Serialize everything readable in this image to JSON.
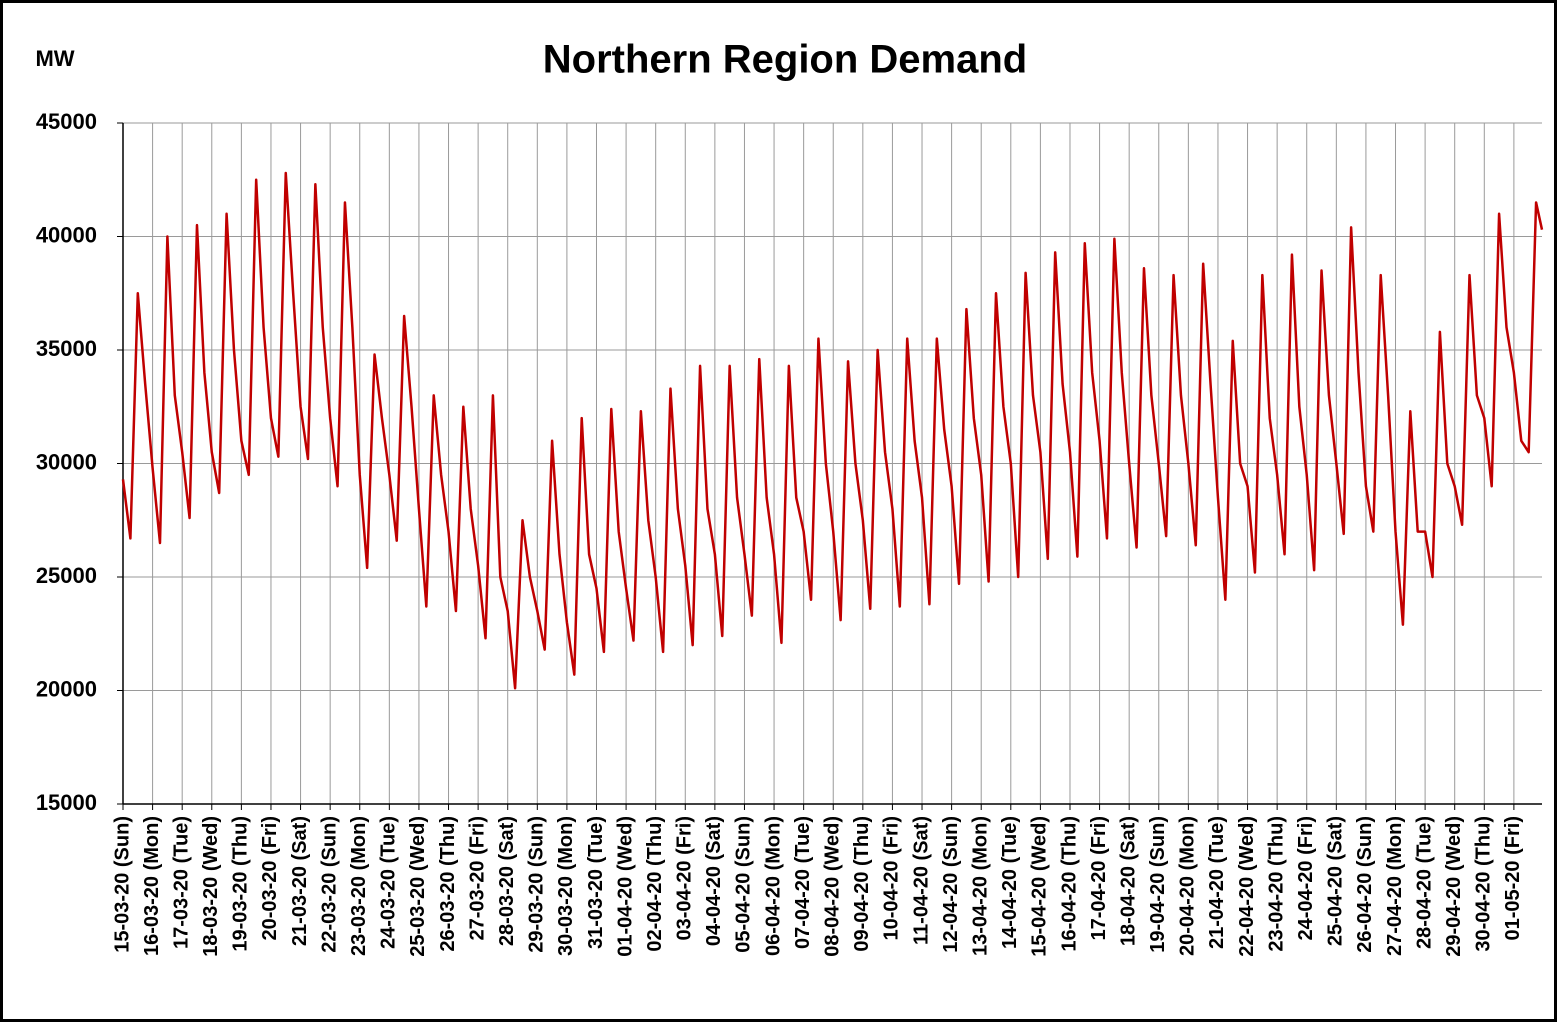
{
  "chart_data": {
    "type": "line",
    "title": "Northern Region Demand",
    "y_label": "MW",
    "color": "#c00000",
    "grid": true,
    "xlim": [
      0,
      47.95
    ],
    "ylim": [
      15000,
      45000
    ],
    "yticks": [
      15000,
      20000,
      25000,
      30000,
      35000,
      40000,
      45000
    ],
    "xticks": [
      {
        "value": 0,
        "label": "15-03-20 (Sun)"
      },
      {
        "value": 1,
        "label": "16-03-20 (Mon)"
      },
      {
        "value": 2,
        "label": "17-03-20 (Tue)"
      },
      {
        "value": 3,
        "label": "18-03-20 (Wed)"
      },
      {
        "value": 4,
        "label": "19-03-20 (Thu)"
      },
      {
        "value": 5,
        "label": "20-03-20 (Fri)"
      },
      {
        "value": 6,
        "label": "21-03-20 (Sat)"
      },
      {
        "value": 7,
        "label": "22-03-20 (Sun)"
      },
      {
        "value": 8,
        "label": "23-03-20 (Mon)"
      },
      {
        "value": 9,
        "label": "24-03-20 (Tue)"
      },
      {
        "value": 10,
        "label": "25-03-20 (Wed)"
      },
      {
        "value": 11,
        "label": "26-03-20 (Thu)"
      },
      {
        "value": 12,
        "label": "27-03-20 (Fri)"
      },
      {
        "value": 13,
        "label": "28-03-20 (Sat)"
      },
      {
        "value": 14,
        "label": "29-03-20 (Sun)"
      },
      {
        "value": 15,
        "label": "30-03-20 (Mon)"
      },
      {
        "value": 16,
        "label": "31-03-20 (Tue)"
      },
      {
        "value": 17,
        "label": "01-04-20 (Wed)"
      },
      {
        "value": 18,
        "label": "02-04-20 (Thu)"
      },
      {
        "value": 19,
        "label": "03-04-20 (Fri)"
      },
      {
        "value": 20,
        "label": "04-04-20 (Sat)"
      },
      {
        "value": 21,
        "label": "05-04-20 (Sun)"
      },
      {
        "value": 22,
        "label": "06-04-20 (Mon)"
      },
      {
        "value": 23,
        "label": "07-04-20 (Tue)"
      },
      {
        "value": 24,
        "label": "08-04-20 (Wed)"
      },
      {
        "value": 25,
        "label": "09-04-20 (Thu)"
      },
      {
        "value": 26,
        "label": "10-04-20 (Fri)"
      },
      {
        "value": 27,
        "label": "11-04-20 (Sat)"
      },
      {
        "value": 28,
        "label": "12-04-20 (Sun)"
      },
      {
        "value": 29,
        "label": "13-04-20 (Mon)"
      },
      {
        "value": 30,
        "label": "14-04-20 (Tue)"
      },
      {
        "value": 31,
        "label": "15-04-20 (Wed)"
      },
      {
        "value": 32,
        "label": "16-04-20 (Thu)"
      },
      {
        "value": 33,
        "label": "17-04-20 (Fri)"
      },
      {
        "value": 34,
        "label": "18-04-20 (Sat)"
      },
      {
        "value": 35,
        "label": "19-04-20 (Sun)"
      },
      {
        "value": 36,
        "label": "20-04-20 (Mon)"
      },
      {
        "value": 37,
        "label": "21-04-20 (Tue)"
      },
      {
        "value": 38,
        "label": "22-04-20 (Wed)"
      },
      {
        "value": 39,
        "label": "23-04-20 (Thu)"
      },
      {
        "value": 40,
        "label": "24-04-20 (Fri)"
      },
      {
        "value": 41,
        "label": "25-04-20 (Sat)"
      },
      {
        "value": 42,
        "label": "26-04-20 (Sun)"
      },
      {
        "value": 43,
        "label": "27-04-20 (Mon)"
      },
      {
        "value": 44,
        "label": "28-04-20 (Tue)"
      },
      {
        "value": 45,
        "label": "29-04-20 (Wed)"
      },
      {
        "value": 46,
        "label": "30-04-20 (Thu)"
      },
      {
        "value": 47,
        "label": "01-05-20 (Fri)"
      }
    ],
    "x": [
      0,
      0.25,
      0.5,
      0.75,
      1,
      1.25,
      1.5,
      1.75,
      2,
      2.25,
      2.5,
      2.75,
      3,
      3.25,
      3.5,
      3.75,
      4,
      4.25,
      4.5,
      4.75,
      5,
      5.25,
      5.5,
      5.75,
      6,
      6.25,
      6.5,
      6.75,
      7,
      7.25,
      7.5,
      7.75,
      8,
      8.25,
      8.5,
      8.75,
      9,
      9.25,
      9.5,
      9.75,
      10,
      10.25,
      10.5,
      10.75,
      11,
      11.25,
      11.5,
      11.75,
      12,
      12.25,
      12.5,
      12.75,
      13,
      13.25,
      13.5,
      13.75,
      14,
      14.25,
      14.5,
      14.75,
      15,
      15.25,
      15.5,
      15.75,
      16,
      16.25,
      16.5,
      16.75,
      17,
      17.25,
      17.5,
      17.75,
      18,
      18.25,
      18.5,
      18.75,
      19,
      19.25,
      19.5,
      19.75,
      20,
      20.25,
      20.5,
      20.75,
      21,
      21.25,
      21.5,
      21.75,
      22,
      22.25,
      22.5,
      22.75,
      23,
      23.25,
      23.5,
      23.75,
      24,
      24.25,
      24.5,
      24.75,
      25,
      25.25,
      25.5,
      25.75,
      26,
      26.25,
      26.5,
      26.75,
      27,
      27.25,
      27.5,
      27.75,
      28,
      28.25,
      28.5,
      28.75,
      29,
      29.25,
      29.5,
      29.75,
      30,
      30.25,
      30.5,
      30.75,
      31,
      31.25,
      31.5,
      31.75,
      32,
      32.25,
      32.5,
      32.75,
      33,
      33.25,
      33.5,
      33.75,
      34,
      34.25,
      34.5,
      34.75,
      35,
      35.25,
      35.5,
      35.75,
      36,
      36.25,
      36.5,
      36.75,
      37,
      37.25,
      37.5,
      37.75,
      38,
      38.25,
      38.5,
      38.75,
      39,
      39.25,
      39.5,
      39.75,
      40,
      40.25,
      40.5,
      40.75,
      41,
      41.25,
      41.5,
      41.75,
      42,
      42.25,
      42.5,
      42.75,
      43,
      43.25,
      43.5,
      43.75,
      44,
      44.25,
      44.5,
      44.75,
      45,
      45.25,
      45.5,
      45.75,
      46,
      46.25,
      46.5,
      46.75,
      47,
      47.25,
      47.5,
      47.75,
      47.95
    ],
    "values": [
      29300,
      26700,
      37500,
      33500,
      29800,
      26500,
      40000,
      33000,
      30500,
      27600,
      40500,
      34000,
      30500,
      28700,
      41000,
      35000,
      31000,
      29500,
      42500,
      36000,
      32000,
      30300,
      42800,
      37500,
      32500,
      30200,
      42300,
      36000,
      32000,
      29000,
      41500,
      36000,
      29500,
      25400,
      34800,
      32000,
      29500,
      26600,
      36500,
      32500,
      28000,
      23700,
      33000,
      29500,
      27000,
      23500,
      32500,
      28000,
      25500,
      22300,
      33000,
      25000,
      23500,
      20100,
      27500,
      25000,
      23500,
      21800,
      31000,
      26000,
      23000,
      20700,
      32000,
      26000,
      24500,
      21700,
      32400,
      27000,
      24500,
      22200,
      32300,
      27500,
      25000,
      21700,
      33300,
      28000,
      25500,
      22000,
      34300,
      28000,
      26000,
      22400,
      34300,
      28500,
      26000,
      23300,
      34600,
      28500,
      26000,
      22100,
      34300,
      28500,
      27000,
      24000,
      35500,
      30000,
      27000,
      23100,
      34500,
      30000,
      27500,
      23600,
      35000,
      30500,
      28000,
      23700,
      35500,
      31000,
      28500,
      23800,
      35500,
      31500,
      29000,
      24700,
      36800,
      32000,
      29500,
      24800,
      37500,
      32500,
      30000,
      25000,
      38400,
      33000,
      30500,
      25800,
      39300,
      33500,
      30500,
      25900,
      39700,
      34000,
      31000,
      26700,
      39900,
      34000,
      30000,
      26300,
      38600,
      33000,
      30000,
      26800,
      38300,
      33000,
      30000,
      26400,
      38800,
      33500,
      28500,
      24000,
      35400,
      30000,
      29000,
      25200,
      38300,
      32000,
      29500,
      26000,
      39200,
      32500,
      29500,
      25300,
      38500,
      33000,
      30000,
      26900,
      40400,
      34000,
      29000,
      27000,
      38300,
      33000,
      27000,
      22900,
      32300,
      27000,
      27000,
      25000,
      35800,
      30000,
      29000,
      27300,
      38300,
      33000,
      32000,
      29000,
      41000,
      36000,
      34000,
      31000,
      30500,
      41500,
      40300
    ]
  }
}
